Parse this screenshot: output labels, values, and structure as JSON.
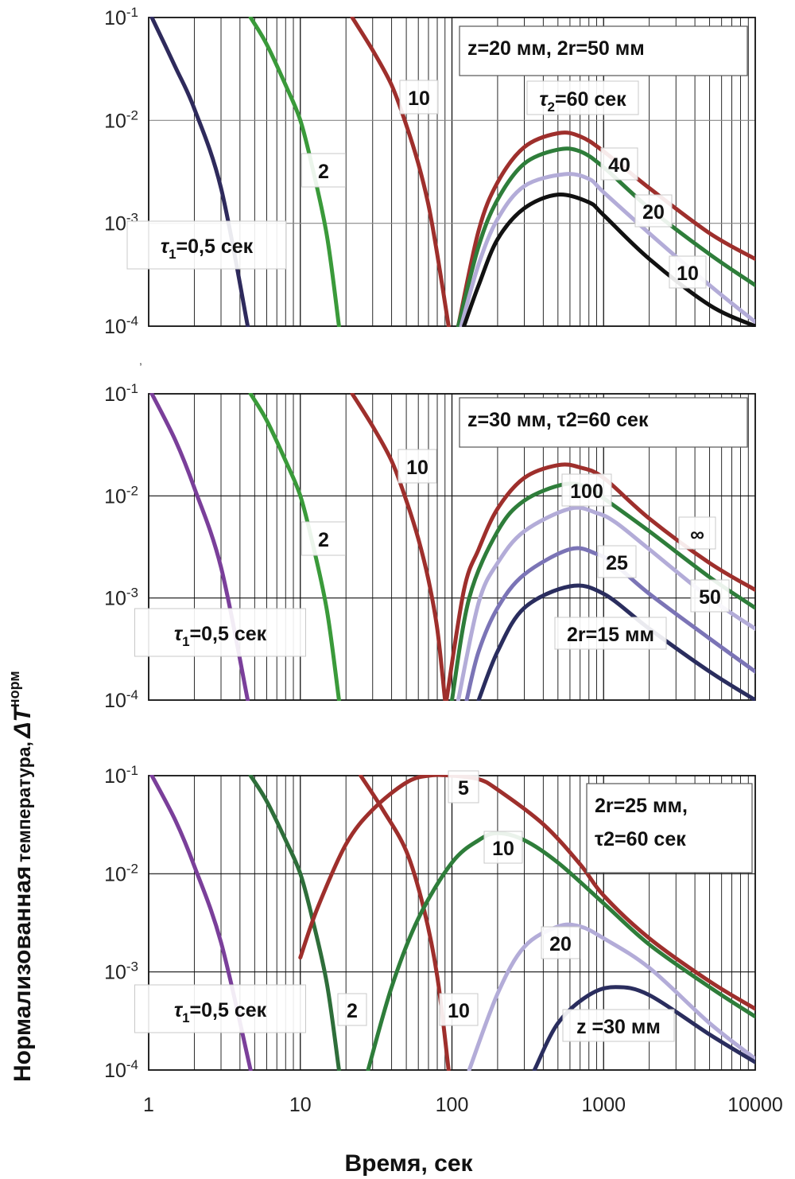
{
  "figure": {
    "ylabel_part1": "Нормализованная",
    "ylabel_part2": "температура,",
    "ylabel_symbol": "ΔT",
    "ylabel_sup": "норм",
    "xlabel": "Время, сек",
    "x_ticks": [
      "1",
      "10",
      "100",
      "1000",
      "10000"
    ],
    "y_ticks": [
      {
        "base": "10",
        "exp": "-1"
      },
      {
        "base": "10",
        "exp": "-2"
      },
      {
        "base": "10",
        "exp": "-3"
      },
      {
        "base": "10",
        "exp": "-4"
      }
    ]
  },
  "chart_data": [
    {
      "type": "line",
      "xscale": "log",
      "yscale": "log",
      "xlim": [
        1,
        10000
      ],
      "ylim": [
        0.0001,
        0.1
      ],
      "grid": true,
      "info_box": "z=20 мм, 2r=50 мм",
      "series": [
        {
          "name": "τ1=0,5 сек",
          "color": "#2e2a5c",
          "points": [
            [
              1.05,
              0.1
            ],
            [
              1.5,
              0.033
            ],
            [
              2,
              0.013
            ],
            [
              3,
              0.0022
            ],
            [
              4.5,
              0.0001
            ]
          ]
        },
        {
          "name": "2",
          "color": "#3a9a3a",
          "points": [
            [
              4.7,
              0.1
            ],
            [
              6,
              0.055
            ],
            [
              8,
              0.022
            ],
            [
              10,
              0.01
            ],
            [
              12,
              0.0035
            ],
            [
              15,
              0.00075
            ],
            [
              18,
              0.0001
            ]
          ]
        },
        {
          "name": "10",
          "color": "#9e2f2c",
          "points": [
            [
              22,
              0.1
            ],
            [
              30,
              0.048
            ],
            [
              40,
              0.022
            ],
            [
              50,
              0.009
            ],
            [
              60,
              0.0038
            ],
            [
              70,
              0.0015
            ],
            [
              80,
              0.0005
            ],
            [
              95,
              0.0001
            ]
          ]
        },
        {
          "name": "τ2=60 сек",
          "color": "#9e2f2c",
          "points": [
            [
              110,
              0.0001
            ],
            [
              150,
              0.00085
            ],
            [
              200,
              0.0025
            ],
            [
              300,
              0.0055
            ],
            [
              500,
              0.0075
            ],
            [
              700,
              0.007
            ],
            [
              1000,
              0.005
            ],
            [
              2000,
              0.0022
            ],
            [
              5000,
              0.0008
            ],
            [
              10000,
              0.00045
            ]
          ]
        },
        {
          "name": "40",
          "color": "#2e7d3a",
          "points": [
            [
              110,
              0.0001
            ],
            [
              150,
              0.0006
            ],
            [
              200,
              0.0017
            ],
            [
              300,
              0.0038
            ],
            [
              500,
              0.0052
            ],
            [
              700,
              0.005
            ],
            [
              1000,
              0.0035
            ],
            [
              2000,
              0.0014
            ],
            [
              5000,
              0.0005
            ],
            [
              10000,
              0.00025
            ]
          ]
        },
        {
          "name": "20",
          "color": "#b3acd8",
          "points": [
            [
              115,
              0.0001
            ],
            [
              150,
              0.0004
            ],
            [
              200,
              0.0011
            ],
            [
              300,
              0.0023
            ],
            [
              550,
              0.003
            ],
            [
              800,
              0.0027
            ],
            [
              1000,
              0.002
            ],
            [
              2000,
              0.0008
            ],
            [
              5000,
              0.00025
            ],
            [
              10000,
              0.00011
            ]
          ]
        },
        {
          "name": "10",
          "color": "#111111",
          "points": [
            [
              120,
              0.0001
            ],
            [
              150,
              0.00025
            ],
            [
              200,
              0.0007
            ],
            [
              300,
              0.0014
            ],
            [
              500,
              0.0019
            ],
            [
              800,
              0.0016
            ],
            [
              1000,
              0.0012
            ],
            [
              2000,
              0.00045
            ],
            [
              5000,
              0.00016
            ],
            [
              10000,
              0.0001
            ]
          ]
        }
      ],
      "annotations": [
        "τ1=0,5 сек",
        "2",
        "10",
        "τ2=60 сек",
        "40",
        "20",
        "10"
      ]
    },
    {
      "type": "line",
      "xscale": "log",
      "yscale": "log",
      "xlim": [
        1,
        10000
      ],
      "ylim": [
        0.0001,
        0.1
      ],
      "grid": true,
      "info_box": "z=30 мм, τ2=60 сек",
      "series": [
        {
          "name": "τ1=0,5 сек",
          "color": "#7a3f9a",
          "points": [
            [
              1.05,
              0.1
            ],
            [
              1.5,
              0.035
            ],
            [
              2,
              0.012
            ],
            [
              3,
              0.002
            ],
            [
              4.5,
              0.0001
            ]
          ]
        },
        {
          "name": "2",
          "color": "#3a9a3a",
          "points": [
            [
              4.7,
              0.1
            ],
            [
              6,
              0.055
            ],
            [
              8,
              0.022
            ],
            [
              10,
              0.01
            ],
            [
              12,
              0.0035
            ],
            [
              15,
              0.00075
            ],
            [
              18,
              0.0001
            ]
          ]
        },
        {
          "name": "10",
          "color": "#9e2f2c",
          "points": [
            [
              22,
              0.1
            ],
            [
              30,
              0.048
            ],
            [
              40,
              0.022
            ],
            [
              50,
              0.009
            ],
            [
              60,
              0.0038
            ],
            [
              70,
              0.0015
            ],
            [
              80,
              0.0005
            ],
            [
              90,
              0.0001
            ]
          ]
        },
        {
          "name": "∞",
          "color": "#9e2f2c",
          "points": [
            [
              92,
              0.0001
            ],
            [
              120,
              0.0012
            ],
            [
              150,
              0.003
            ],
            [
              200,
              0.0075
            ],
            [
              300,
              0.015
            ],
            [
              500,
              0.02
            ],
            [
              700,
              0.019
            ],
            [
              1000,
              0.015
            ],
            [
              2000,
              0.006
            ],
            [
              5000,
              0.0022
            ],
            [
              10000,
              0.0012
            ]
          ]
        },
        {
          "name": "100",
          "color": "#2e7d3a",
          "points": [
            [
              100,
              0.0001
            ],
            [
              130,
              0.001
            ],
            [
              200,
              0.0045
            ],
            [
              300,
              0.009
            ],
            [
              550,
              0.013
            ],
            [
              800,
              0.012
            ],
            [
              1000,
              0.0095
            ],
            [
              2000,
              0.0045
            ],
            [
              5000,
              0.0016
            ],
            [
              10000,
              0.0008
            ]
          ]
        },
        {
          "name": "50",
          "color": "#b3acd8",
          "points": [
            [
              110,
              0.0001
            ],
            [
              150,
              0.0009
            ],
            [
              200,
              0.0022
            ],
            [
              300,
              0.0045
            ],
            [
              600,
              0.0075
            ],
            [
              900,
              0.0068
            ],
            [
              1200,
              0.0055
            ],
            [
              2000,
              0.003
            ],
            [
              5000,
              0.001
            ],
            [
              10000,
              0.0005
            ]
          ]
        },
        {
          "name": "25",
          "color": "#7b74b6",
          "points": [
            [
              125,
              0.0001
            ],
            [
              150,
              0.0003
            ],
            [
              200,
              0.0008
            ],
            [
              300,
              0.0017
            ],
            [
              600,
              0.003
            ],
            [
              900,
              0.0027
            ],
            [
              1200,
              0.0021
            ],
            [
              2000,
              0.0011
            ],
            [
              5000,
              0.0004
            ],
            [
              10000,
              0.00019
            ]
          ]
        },
        {
          "name": "2r=15 мм",
          "color": "#2a2d5e",
          "points": [
            [
              150,
              0.0001
            ],
            [
              200,
              0.0003
            ],
            [
              300,
              0.0008
            ],
            [
              600,
              0.0013
            ],
            [
              1000,
              0.0011
            ],
            [
              2000,
              0.0005
            ],
            [
              5000,
              0.00019
            ],
            [
              10000,
              0.0001
            ]
          ]
        }
      ],
      "annotations": [
        "τ1=0,5 сек",
        "2",
        "10",
        "100",
        "∞",
        "25",
        "50",
        "2r=15 мм"
      ]
    },
    {
      "type": "line",
      "xscale": "log",
      "yscale": "log",
      "xlim": [
        1,
        10000
      ],
      "ylim": [
        0.0001,
        0.1
      ],
      "grid": true,
      "info_box_line1": "2r=25 мм,",
      "info_box_line2": "τ2=60 сек",
      "series": [
        {
          "name": "τ1=0,5 сек",
          "color": "#7a3f9a",
          "points": [
            [
              1.05,
              0.1
            ],
            [
              1.5,
              0.035
            ],
            [
              2,
              0.012
            ],
            [
              3,
              0.002
            ],
            [
              4.7,
              0.0001
            ]
          ]
        },
        {
          "name": "2",
          "color": "#2e6e3a",
          "points": [
            [
              4.7,
              0.1
            ],
            [
              6,
              0.055
            ],
            [
              8,
              0.022
            ],
            [
              10,
              0.01
            ],
            [
              12,
              0.0035
            ],
            [
              15,
              0.00075
            ],
            [
              18,
              0.0001
            ]
          ]
        },
        {
          "name": "10",
          "color": "#9e2f2c",
          "points": [
            [
              25,
              0.1
            ],
            [
              35,
              0.045
            ],
            [
              50,
              0.017
            ],
            [
              65,
              0.0045
            ],
            [
              80,
              0.0009
            ],
            [
              95,
              0.0001
            ]
          ]
        },
        {
          "name": "5",
          "color": "#9e2f2c",
          "points": [
            [
              10,
              0.0014
            ],
            [
              13,
              0.0045
            ],
            [
              20,
              0.02
            ],
            [
              30,
              0.045
            ],
            [
              50,
              0.085
            ],
            [
              70,
              0.1
            ],
            [
              100,
              0.1
            ],
            [
              150,
              0.092
            ],
            [
              200,
              0.072
            ],
            [
              400,
              0.032
            ],
            [
              700,
              0.0125
            ],
            [
              1000,
              0.006
            ],
            [
              2000,
              0.0022
            ],
            [
              5000,
              0.0008
            ],
            [
              10000,
              0.00042
            ]
          ]
        },
        {
          "name": "10",
          "color": "#2e7d3a",
          "points": [
            [
              28,
              0.0001
            ],
            [
              40,
              0.0007
            ],
            [
              60,
              0.0035
            ],
            [
              100,
              0.013
            ],
            [
              150,
              0.022
            ],
            [
              200,
              0.026
            ],
            [
              300,
              0.022
            ],
            [
              500,
              0.013
            ],
            [
              1000,
              0.005
            ],
            [
              2000,
              0.0019
            ],
            [
              5000,
              0.0007
            ],
            [
              10000,
              0.00035
            ]
          ]
        },
        {
          "name": "20",
          "color": "#b3acd8",
          "points": [
            [
              130,
              0.0001
            ],
            [
              200,
              0.0006
            ],
            [
              300,
              0.0018
            ],
            [
              500,
              0.0029
            ],
            [
              700,
              0.0029
            ],
            [
              1000,
              0.0022
            ],
            [
              2000,
              0.0011
            ],
            [
              5000,
              0.0003
            ],
            [
              10000,
              0.00013
            ]
          ]
        },
        {
          "name": "z =30 мм",
          "color": "#2a2d5e",
          "points": [
            [
              350,
              0.0001
            ],
            [
              500,
              0.0003
            ],
            [
              800,
              0.00058
            ],
            [
              1200,
              0.0007
            ],
            [
              2000,
              0.00058
            ],
            [
              5000,
              0.00023
            ],
            [
              10000,
              0.00012
            ]
          ]
        }
      ],
      "annotations": [
        "τ1=0,5 сек",
        "2",
        "10",
        "5",
        "10",
        "20",
        "z =30 мм"
      ]
    }
  ]
}
